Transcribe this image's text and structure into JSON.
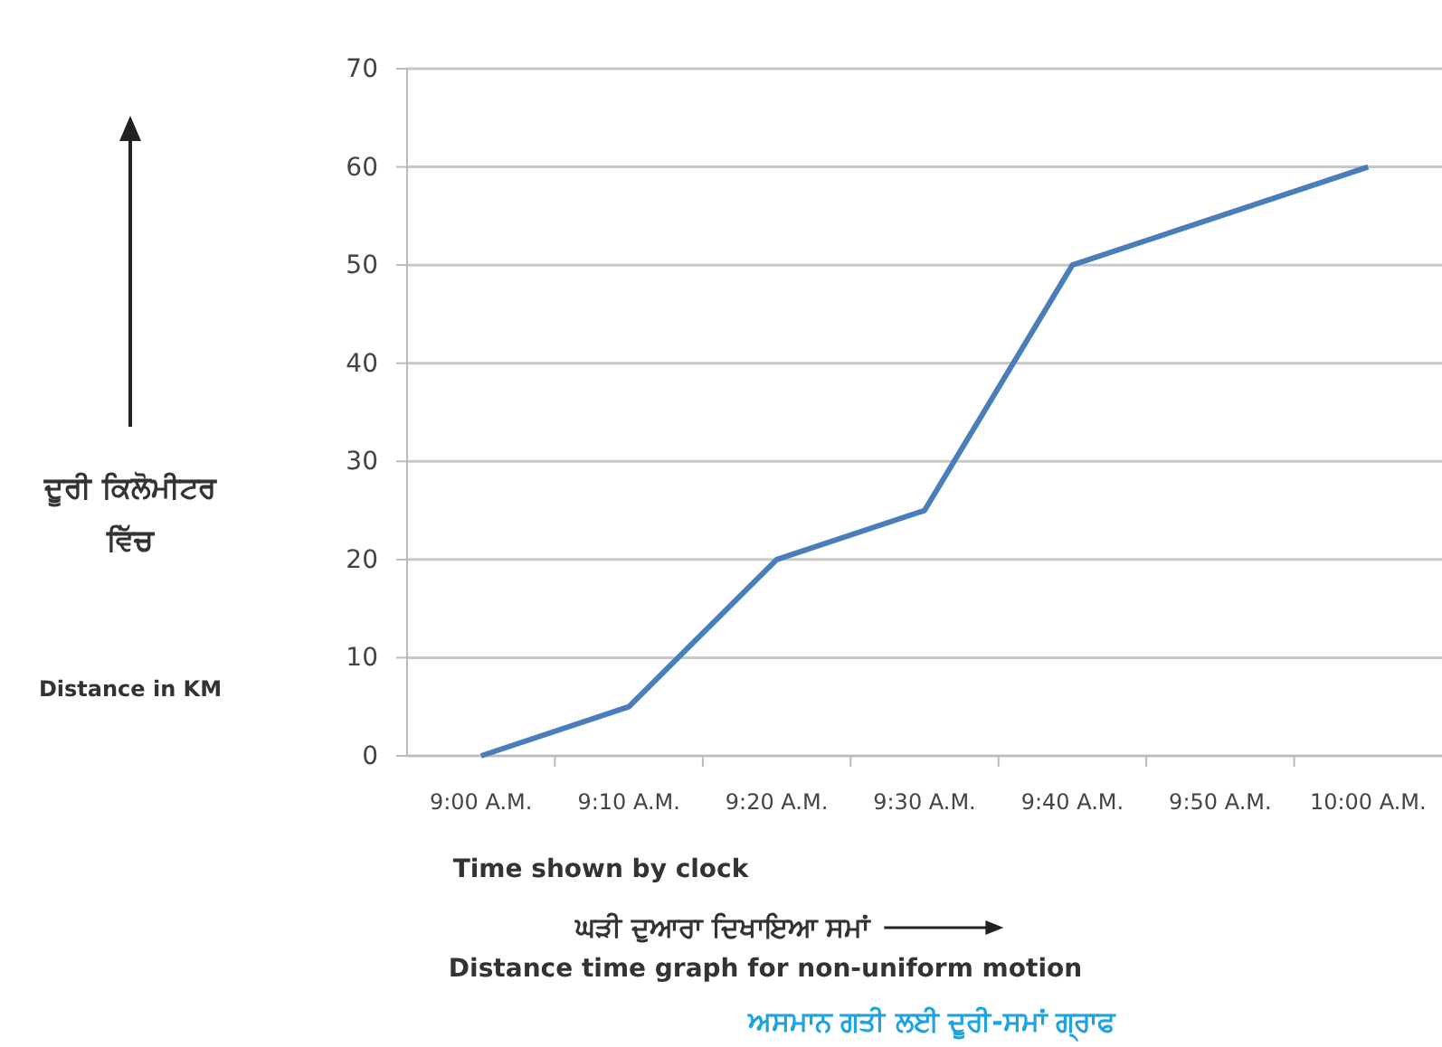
{
  "chart_data": {
    "type": "line",
    "title": "Distance time graph for non-uniform motion",
    "subtitle": "ਅਸਮਾਨ ਗਤੀ ਲਈ ਦੂਰੀ-ਸਮਾਂ ਗ੍ਰਾਫ",
    "xlabel": "Time shown by clock",
    "annotations": [
      "ਦੂਰੀ ਕਿਲੋਮੀਟਰ ਵਿੱਚ",
      "ਘੜੀ ਦੁਆਰਾ ਦਿਖਾਇਆ ਸਮਾਂ",
      "Distance in KM"
    ],
    "categories": [
      "9:00 A.M.",
      "9:10 A.M.",
      "9:20 A.M.",
      "9:30 A.M.",
      "9:40 A.M.",
      "9:50 A.M.",
      "10:00 A.M."
    ],
    "series": [
      {
        "color": "#4a7ebb",
        "values": [
          0,
          5,
          20,
          25,
          50,
          55,
          60
        ]
      }
    ],
    "ylim": [
      0,
      70
    ],
    "yticks": [
      0,
      10,
      20,
      30,
      40,
      50,
      60,
      70
    ],
    "grid": "y",
    "marker": "none",
    "line_style": "solid"
  }
}
